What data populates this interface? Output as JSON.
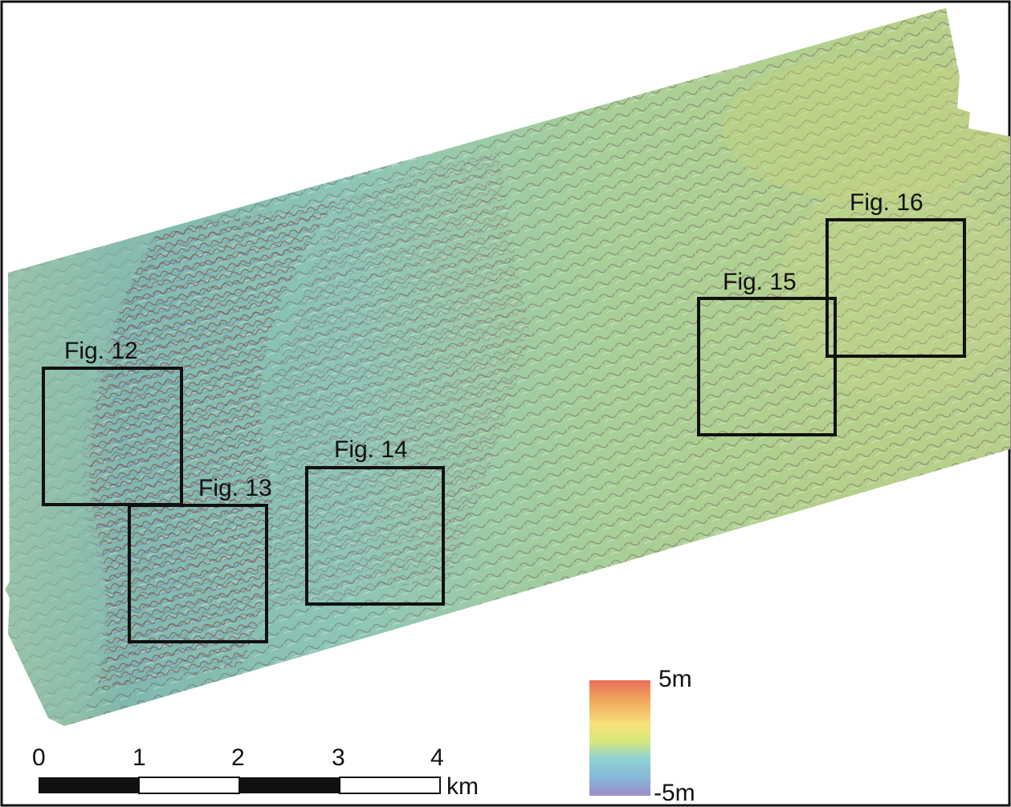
{
  "map": {
    "figure_boxes": [
      {
        "id": "fig12",
        "label": "Fig. 12"
      },
      {
        "id": "fig13",
        "label": "Fig. 13"
      },
      {
        "id": "fig14",
        "label": "Fig. 14"
      },
      {
        "id": "fig15",
        "label": "Fig. 15"
      },
      {
        "id": "fig16",
        "label": "Fig. 16"
      }
    ],
    "scale_bar": {
      "ticks": [
        "0",
        "1",
        "2",
        "3",
        "4"
      ],
      "unit": "km"
    },
    "color_legend": {
      "max_label": "5m",
      "min_label": "-5m",
      "colors": [
        "#e8705a",
        "#f2a95f",
        "#f5e27a",
        "#d9e879",
        "#8fd3d4",
        "#86b8d8",
        "#9b8ec6"
      ]
    }
  }
}
